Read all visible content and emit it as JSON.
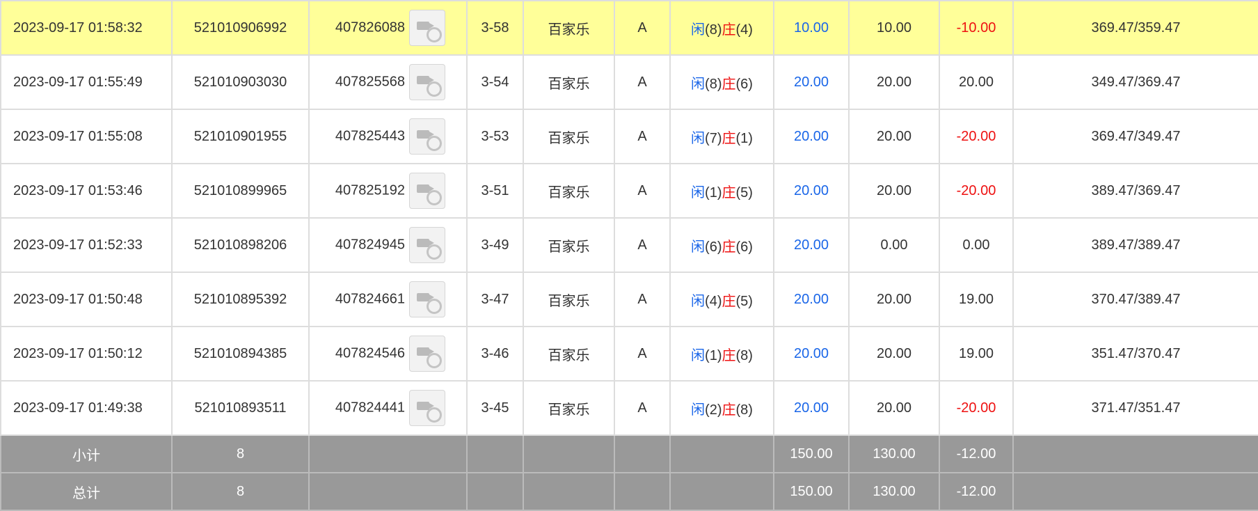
{
  "rows": [
    {
      "time": "2023-09-17 01:58:32",
      "order_id": "521010906992",
      "round_id": "407826088",
      "video_icon": "video-replay-icon",
      "shoe": "3-58",
      "game": "百家乐",
      "table": "A",
      "result_player": "闲",
      "player_score": "(8)",
      "result_banker": "庄",
      "banker_score": "(4)",
      "bet": "10.00",
      "valid_bet": "10.00",
      "win_loss": "-10.00",
      "balance": "369.47/359.47"
    },
    {
      "time": "2023-09-17 01:55:49",
      "order_id": "521010903030",
      "round_id": "407825568",
      "video_icon": "video-replay-icon",
      "shoe": "3-54",
      "game": "百家乐",
      "table": "A",
      "result_player": "闲",
      "player_score": "(8)",
      "result_banker": "庄",
      "banker_score": "(6)",
      "bet": "20.00",
      "valid_bet": "20.00",
      "win_loss": "20.00",
      "balance": "349.47/369.47"
    },
    {
      "time": "2023-09-17 01:55:08",
      "order_id": "521010901955",
      "round_id": "407825443",
      "video_icon": "video-replay-icon",
      "shoe": "3-53",
      "game": "百家乐",
      "table": "A",
      "result_player": "闲",
      "player_score": "(7)",
      "result_banker": "庄",
      "banker_score": "(1)",
      "bet": "20.00",
      "valid_bet": "20.00",
      "win_loss": "-20.00",
      "balance": "369.47/349.47"
    },
    {
      "time": "2023-09-17 01:53:46",
      "order_id": "521010899965",
      "round_id": "407825192",
      "video_icon": "video-replay-icon",
      "shoe": "3-51",
      "game": "百家乐",
      "table": "A",
      "result_player": "闲",
      "player_score": "(1)",
      "result_banker": "庄",
      "banker_score": "(5)",
      "bet": "20.00",
      "valid_bet": "20.00",
      "win_loss": "-20.00",
      "balance": "389.47/369.47"
    },
    {
      "time": "2023-09-17 01:52:33",
      "order_id": "521010898206",
      "round_id": "407824945",
      "video_icon": "video-replay-icon",
      "shoe": "3-49",
      "game": "百家乐",
      "table": "A",
      "result_player": "闲",
      "player_score": "(6)",
      "result_banker": "庄",
      "banker_score": "(6)",
      "bet": "20.00",
      "valid_bet": "0.00",
      "win_loss": "0.00",
      "balance": "389.47/389.47"
    },
    {
      "time": "2023-09-17 01:50:48",
      "order_id": "521010895392",
      "round_id": "407824661",
      "video_icon": "video-replay-icon",
      "shoe": "3-47",
      "game": "百家乐",
      "table": "A",
      "result_player": "闲",
      "player_score": "(4)",
      "result_banker": "庄",
      "banker_score": "(5)",
      "bet": "20.00",
      "valid_bet": "20.00",
      "win_loss": "19.00",
      "balance": "370.47/389.47"
    },
    {
      "time": "2023-09-17 01:50:12",
      "order_id": "521010894385",
      "round_id": "407824546",
      "video_icon": "video-replay-icon",
      "shoe": "3-46",
      "game": "百家乐",
      "table": "A",
      "result_player": "闲",
      "player_score": "(1)",
      "result_banker": "庄",
      "banker_score": "(8)",
      "bet": "20.00",
      "valid_bet": "20.00",
      "win_loss": "19.00",
      "balance": "351.47/370.47"
    },
    {
      "time": "2023-09-17 01:49:38",
      "order_id": "521010893511",
      "round_id": "407824441",
      "video_icon": "video-replay-icon",
      "shoe": "3-45",
      "game": "百家乐",
      "table": "A",
      "result_player": "闲",
      "player_score": "(2)",
      "result_banker": "庄",
      "banker_score": "(8)",
      "bet": "20.00",
      "valid_bet": "20.00",
      "win_loss": "-20.00",
      "balance": "371.47/351.47"
    }
  ],
  "subtotal": {
    "label": "小计",
    "count": "8",
    "bet": "150.00",
    "valid_bet": "130.00",
    "win_loss": "-12.00"
  },
  "total": {
    "label": "总计",
    "count": "8",
    "bet": "150.00",
    "valid_bet": "130.00",
    "win_loss": "-12.00"
  },
  "colors": {
    "highlight": "#ffff99",
    "player": "#1a66e8",
    "banker": "#ee1111",
    "negative": "#ee1111",
    "summary_bg": "#999999"
  }
}
